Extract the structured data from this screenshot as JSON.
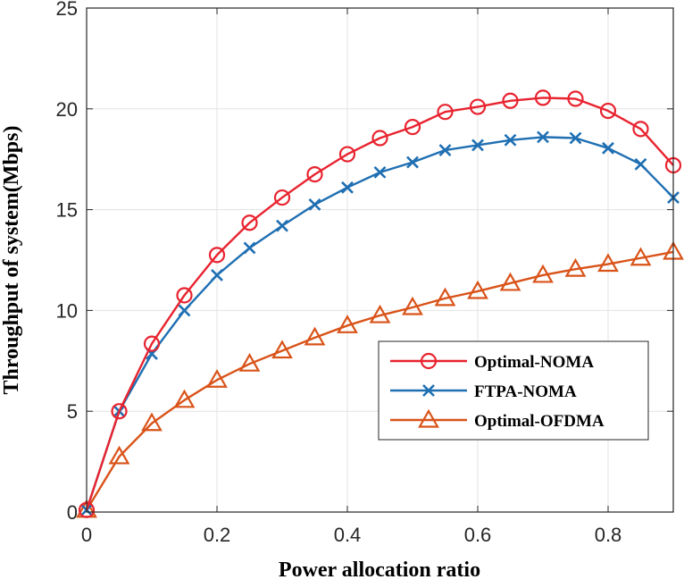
{
  "chart_data": {
    "type": "line",
    "title": "",
    "xlabel": "Power allocation ratio",
    "ylabel": "Throughput of system(Mbps)",
    "xlim": [
      0,
      0.9
    ],
    "ylim": [
      0,
      25
    ],
    "xticks": [
      0,
      0.2,
      0.4,
      0.6,
      0.8
    ],
    "xtick_labels": [
      "0",
      "0.2",
      "0.4",
      "0.6",
      "0.8"
    ],
    "yticks": [
      0,
      5,
      10,
      15,
      20,
      25
    ],
    "ytick_labels": [
      "0",
      "5",
      "10",
      "15",
      "20",
      "25"
    ],
    "grid": true,
    "legend_position": "lower-right",
    "x": [
      0,
      0.05,
      0.1,
      0.15,
      0.2,
      0.25,
      0.3,
      0.35,
      0.4,
      0.45,
      0.5,
      0.55,
      0.6,
      0.65,
      0.7,
      0.75,
      0.8,
      0.85,
      0.9
    ],
    "series": [
      {
        "name": "Optimal-NOMA",
        "color": "#e8232f",
        "marker": "circle",
        "values": [
          0.1,
          5.0,
          8.35,
          10.75,
          12.75,
          14.35,
          15.6,
          16.75,
          17.75,
          18.55,
          19.1,
          19.85,
          20.1,
          20.4,
          20.55,
          20.5,
          19.9,
          19.0,
          17.2
        ]
      },
      {
        "name": "FTPA-NOMA",
        "color": "#1f6fb2",
        "marker": "x",
        "values": [
          0.1,
          5.0,
          7.85,
          10.0,
          11.75,
          13.1,
          14.2,
          15.25,
          16.1,
          16.85,
          17.35,
          17.95,
          18.2,
          18.45,
          18.6,
          18.55,
          18.05,
          17.25,
          15.6
        ]
      },
      {
        "name": "Optimal-OFDMA",
        "color": "#d95319",
        "marker": "triangle",
        "values": [
          0.1,
          2.75,
          4.4,
          5.55,
          6.55,
          7.35,
          8.0,
          8.65,
          9.25,
          9.75,
          10.15,
          10.6,
          10.95,
          11.35,
          11.75,
          12.05,
          12.3,
          12.6,
          12.9
        ]
      }
    ]
  }
}
